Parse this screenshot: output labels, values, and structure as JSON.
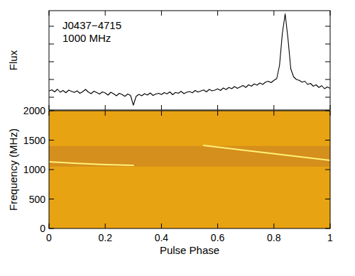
{
  "chart_data": [
    {
      "type": "line",
      "title": "J0437−4715",
      "subtitle": "1000 MHz",
      "ylabel": "Flux",
      "xlim": [
        0,
        1
      ],
      "ylim": [
        -0.72,
        4.88
      ],
      "xticks": [
        0,
        0.2,
        0.4,
        0.6,
        0.8,
        1
      ],
      "yticks": [
        0,
        1,
        2,
        3,
        4
      ],
      "tick_labels": false,
      "color": "#000000",
      "x": [
        0,
        0.01,
        0.02,
        0.03,
        0.04,
        0.05,
        0.06,
        0.07,
        0.08,
        0.09,
        0.1,
        0.11,
        0.12,
        0.13,
        0.14,
        0.15,
        0.16,
        0.17,
        0.18,
        0.19,
        0.2,
        0.21,
        0.22,
        0.23,
        0.24,
        0.25,
        0.26,
        0.27,
        0.28,
        0.29,
        0.3,
        0.31,
        0.32,
        0.33,
        0.34,
        0.35,
        0.36,
        0.37,
        0.38,
        0.39,
        0.4,
        0.41,
        0.42,
        0.43,
        0.44,
        0.45,
        0.46,
        0.47,
        0.48,
        0.49,
        0.5,
        0.51,
        0.52,
        0.53,
        0.54,
        0.55,
        0.56,
        0.57,
        0.58,
        0.59,
        0.6,
        0.61,
        0.62,
        0.63,
        0.64,
        0.65,
        0.66,
        0.67,
        0.68,
        0.69,
        0.7,
        0.71,
        0.72,
        0.73,
        0.74,
        0.75,
        0.76,
        0.77,
        0.78,
        0.79,
        0.8,
        0.81,
        0.82,
        0.83,
        0.84,
        0.85,
        0.86,
        0.87,
        0.88,
        0.89,
        0.9,
        0.91,
        0.92,
        0.93,
        0.94,
        0.95,
        0.96,
        0.97,
        0.98,
        0.99,
        1
      ],
      "values": [
        0.35,
        0.42,
        0.3,
        0.45,
        0.28,
        0.38,
        0.25,
        0.4,
        0.33,
        0.27,
        0.36,
        0.22,
        0.31,
        0.44,
        0.29,
        0.2,
        0.34,
        0.26,
        0.18,
        0.3,
        0.24,
        0.12,
        0.28,
        0.19,
        0.08,
        0.22,
        0.15,
        0.05,
        0.18,
        0.1,
        -0.45,
        0.05,
        0.16,
        0.08,
        0.2,
        0.12,
        0.24,
        0.1,
        0.18,
        0.22,
        0.15,
        0.26,
        0.19,
        0.3,
        0.14,
        0.27,
        0.22,
        0.33,
        0.2,
        0.28,
        0.32,
        0.25,
        0.38,
        0.29,
        0.35,
        0.41,
        0.3,
        0.44,
        0.36,
        0.4,
        0.47,
        0.38,
        0.52,
        0.43,
        0.55,
        0.48,
        0.6,
        0.5,
        0.58,
        0.66,
        0.55,
        0.7,
        0.62,
        0.75,
        0.68,
        0.8,
        0.72,
        0.85,
        0.9,
        0.82,
        0.95,
        1.05,
        1.8,
        3.6,
        4.7,
        3.3,
        1.6,
        1.15,
        1.0,
        0.95,
        0.85,
        0.9,
        0.72,
        0.78,
        0.62,
        0.7,
        0.55,
        0.65,
        0.48,
        0.58,
        0.5
      ]
    },
    {
      "type": "dynamic_spectrum",
      "ylabel": "Frequency (MHz)",
      "xlabel": "Pulse Phase",
      "xlim": [
        0,
        1
      ],
      "ylim": [
        0,
        2000
      ],
      "xticks": [
        0,
        0.2,
        0.4,
        0.6,
        0.8,
        1
      ],
      "yticks": [
        0,
        500,
        1000,
        1500,
        2000
      ],
      "color": "#e8a313",
      "series": [
        {
          "type": "band",
          "color": "#d58f1c",
          "values": [
            1050,
            1400
          ]
        },
        {
          "type": "line",
          "color": "#fff27a",
          "x": [
            0,
            0.1,
            0.2,
            0.3,
            0.42,
            0.55,
            0.7,
            0.85,
            1
          ],
          "values": [
            1133,
            1105,
            1085,
            1072,
            null,
            1410,
            1326,
            1241,
            1157
          ]
        }
      ]
    }
  ]
}
